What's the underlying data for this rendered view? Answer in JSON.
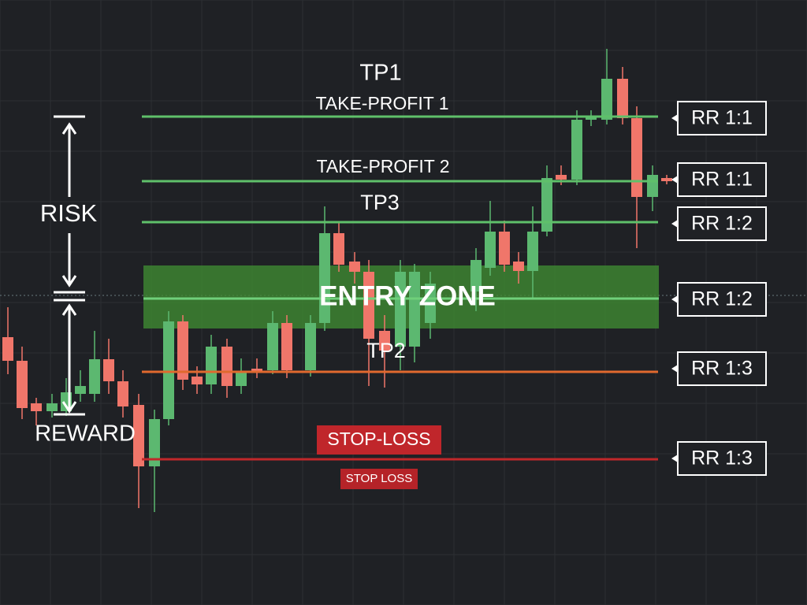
{
  "labels": {
    "tp1": "TP1",
    "take_profit_1": "TAKE-PROFIT 1",
    "take_profit_2": "TAKE-PROFIT 2",
    "tp3": "TP3",
    "entry_zone": "ENTRY ZONE",
    "tp2": "TP2",
    "stop_loss_big": "STOP-LOSS",
    "stop_loss_small": "STOP LOSS",
    "risk": "RISK",
    "reward": "REWARD"
  },
  "rr_boxes": [
    "RR 1:1",
    "RR 1:1",
    "RR 1:2",
    "RR 1:2",
    "RR 1:3",
    "RR 1:3"
  ]
}
